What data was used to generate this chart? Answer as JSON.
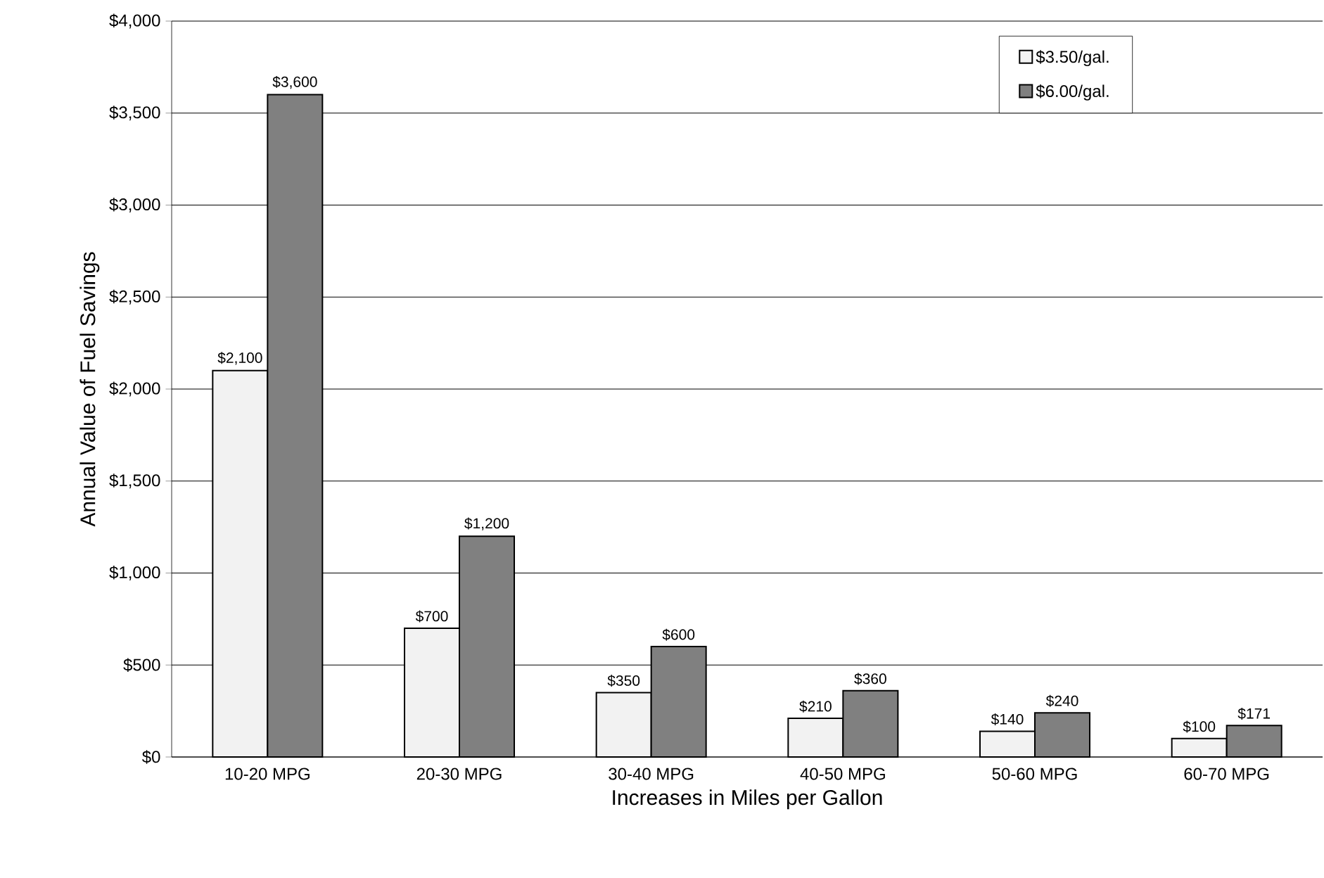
{
  "chart_data": {
    "type": "bar",
    "xlabel": "Increases in Miles per Gallon",
    "ylabel": "Annual Value of Fuel Savings",
    "categories": [
      "10-20 MPG",
      "20-30 MPG",
      "30-40 MPG",
      "40-50 MPG",
      "50-60 MPG",
      "60-70 MPG"
    ],
    "series": [
      {
        "name": "$3.50/gal.",
        "color": "#f2f2f2",
        "values": [
          2100,
          700,
          350,
          210,
          140,
          100
        ],
        "value_labels": [
          "$2,100",
          "$700",
          "$350",
          "$210",
          "$140",
          "$100"
        ]
      },
      {
        "name": "$6.00/gal.",
        "color": "#808080",
        "values": [
          3600,
          1200,
          600,
          360,
          240,
          171
        ],
        "value_labels": [
          "$3,600",
          "$1,200",
          "$600",
          "$360",
          "$240",
          "$171"
        ]
      }
    ],
    "ylim": [
      0,
      4000
    ],
    "yticks": [
      {
        "value": 0,
        "label": "$0"
      },
      {
        "value": 500,
        "label": "$500"
      },
      {
        "value": 1000,
        "label": "$1,000"
      },
      {
        "value": 1500,
        "label": "$1,500"
      },
      {
        "value": 2000,
        "label": "$2,000"
      },
      {
        "value": 2500,
        "label": "$2,500"
      },
      {
        "value": 3000,
        "label": "$3,000"
      },
      {
        "value": 3500,
        "label": "$3,500"
      },
      {
        "value": 4000,
        "label": "$4,000"
      }
    ],
    "grid": "y",
    "legend": "top right"
  }
}
